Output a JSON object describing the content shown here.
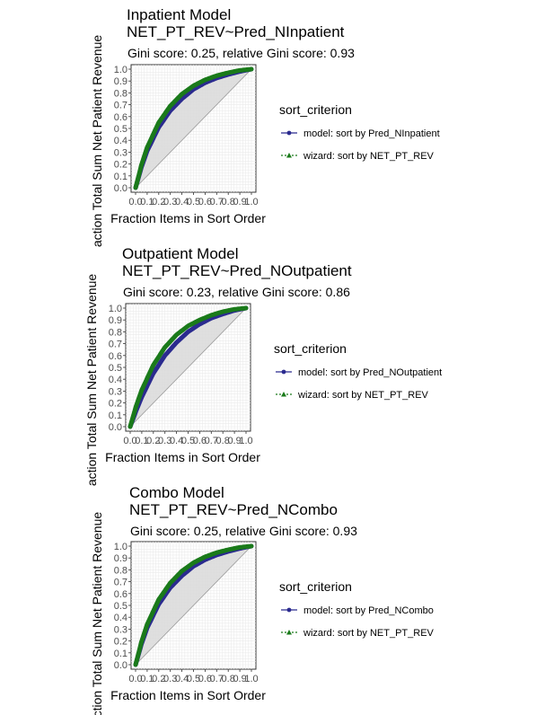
{
  "figure": {
    "ylabel": "action Total Sum Net Patient Revenue",
    "xlabel": "Fraction Items in Sort Order",
    "legend_title": "sort_criterion"
  },
  "colors": {
    "model": "#2b2b8f",
    "wizard": "#1a7a1a",
    "band": "#d9d9d9",
    "grid": "#ebebeb",
    "diagonal": "#999999"
  },
  "chart_data": [
    {
      "type": "line",
      "title": "Inpatient Model",
      "subtitle": "NET_PT_REV~Pred_NInpatient",
      "gini_text": "Gini score: 0.25, relative Gini score: 0.93",
      "xlabel": "Fraction Items in Sort Order",
      "ylabel": "action Total Sum Net Patient Revenue",
      "xlim": [
        0,
        1
      ],
      "ylim": [
        0,
        1
      ],
      "x_ticks": [
        "0.0",
        "0.1",
        "0.2",
        "0.3",
        "0.4",
        "0.5",
        "0.6",
        "0.7",
        "0.8",
        "0.9",
        "1.0"
      ],
      "y_ticks": [
        "0.0",
        "0.1",
        "0.2",
        "0.3",
        "0.4",
        "0.5",
        "0.6",
        "0.7",
        "0.8",
        "0.9",
        "1.0"
      ],
      "legend": [
        "model: sort by Pred_NInpatient",
        "wizard: sort by NET_PT_REV"
      ],
      "series": [
        {
          "name": "model: sort by Pred_NInpatient",
          "x": [
            0,
            0.05,
            0.1,
            0.2,
            0.3,
            0.4,
            0.5,
            0.6,
            0.7,
            0.8,
            0.9,
            1.0
          ],
          "y": [
            0,
            0.17,
            0.31,
            0.51,
            0.65,
            0.75,
            0.83,
            0.885,
            0.925,
            0.955,
            0.98,
            1.0
          ]
        },
        {
          "name": "wizard: sort by NET_PT_REV",
          "x": [
            0,
            0.05,
            0.1,
            0.2,
            0.3,
            0.4,
            0.5,
            0.6,
            0.7,
            0.8,
            0.9,
            1.0
          ],
          "y": [
            0,
            0.19,
            0.34,
            0.55,
            0.69,
            0.79,
            0.86,
            0.91,
            0.945,
            0.97,
            0.99,
            1.0
          ]
        }
      ],
      "legend_position": "right",
      "grid": true
    },
    {
      "type": "line",
      "title": "Outpatient Model",
      "subtitle": "NET_PT_REV~Pred_NOutpatient",
      "gini_text": "Gini score: 0.23, relative Gini score: 0.86",
      "xlabel": "Fraction Items in Sort Order",
      "ylabel": "action Total Sum Net Patient Revenue",
      "xlim": [
        0,
        1
      ],
      "ylim": [
        0,
        1
      ],
      "x_ticks": [
        "0.0",
        "0.1",
        "0.2",
        "0.3",
        "0.4",
        "0.5",
        "0.6",
        "0.7",
        "0.8",
        "0.9",
        "1.0"
      ],
      "y_ticks": [
        "0.0",
        "0.1",
        "0.2",
        "0.3",
        "0.4",
        "0.5",
        "0.6",
        "0.7",
        "0.8",
        "0.9",
        "1.0"
      ],
      "legend": [
        "model: sort by Pred_NOutpatient",
        "wizard: sort by NET_PT_REV"
      ],
      "series": [
        {
          "name": "model: sort by Pred_NOutpatient",
          "x": [
            0,
            0.05,
            0.1,
            0.2,
            0.3,
            0.4,
            0.5,
            0.6,
            0.7,
            0.8,
            0.9,
            1.0
          ],
          "y": [
            0,
            0.13,
            0.25,
            0.45,
            0.6,
            0.71,
            0.8,
            0.865,
            0.915,
            0.95,
            0.98,
            1.0
          ]
        },
        {
          "name": "wizard: sort by NET_PT_REV",
          "x": [
            0,
            0.05,
            0.1,
            0.2,
            0.3,
            0.4,
            0.5,
            0.6,
            0.7,
            0.8,
            0.9,
            1.0
          ],
          "y": [
            0,
            0.17,
            0.31,
            0.52,
            0.67,
            0.775,
            0.85,
            0.9,
            0.94,
            0.97,
            0.99,
            1.0
          ]
        }
      ],
      "legend_position": "right",
      "grid": true
    },
    {
      "type": "line",
      "title": "Combo Model",
      "subtitle": "NET_PT_REV~Pred_NCombo",
      "gini_text": "Gini score: 0.25, relative Gini score: 0.93",
      "xlabel": "Fraction Items in Sort Order",
      "ylabel": "action Total Sum Net Patient Revenue",
      "xlim": [
        0,
        1
      ],
      "ylim": [
        0,
        1
      ],
      "x_ticks": [
        "0.0",
        "0.1",
        "0.2",
        "0.3",
        "0.4",
        "0.5",
        "0.6",
        "0.7",
        "0.8",
        "0.9",
        "1.0"
      ],
      "y_ticks": [
        "0.0",
        "0.1",
        "0.2",
        "0.3",
        "0.4",
        "0.5",
        "0.6",
        "0.7",
        "0.8",
        "0.9",
        "1.0"
      ],
      "legend": [
        "model: sort by Pred_NCombo",
        "wizard: sort by NET_PT_REV"
      ],
      "series": [
        {
          "name": "model: sort by Pred_NCombo",
          "x": [
            0,
            0.05,
            0.1,
            0.2,
            0.3,
            0.4,
            0.5,
            0.6,
            0.7,
            0.8,
            0.9,
            1.0
          ],
          "y": [
            0,
            0.17,
            0.31,
            0.51,
            0.65,
            0.75,
            0.83,
            0.885,
            0.925,
            0.955,
            0.98,
            1.0
          ]
        },
        {
          "name": "wizard: sort by NET_PT_REV",
          "x": [
            0,
            0.05,
            0.1,
            0.2,
            0.3,
            0.4,
            0.5,
            0.6,
            0.7,
            0.8,
            0.9,
            1.0
          ],
          "y": [
            0,
            0.19,
            0.34,
            0.55,
            0.69,
            0.79,
            0.86,
            0.91,
            0.945,
            0.97,
            0.99,
            1.0
          ]
        }
      ],
      "legend_position": "right",
      "grid": true
    }
  ]
}
